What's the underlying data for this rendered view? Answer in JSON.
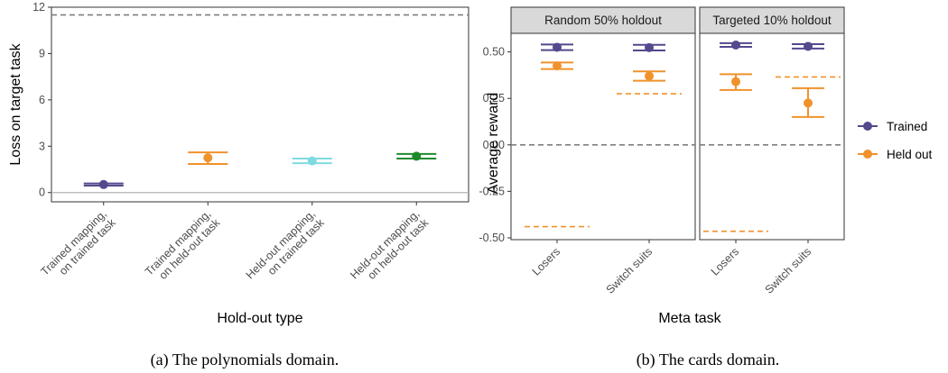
{
  "chart_data": [
    {
      "type": "scatter",
      "title": "",
      "xlabel": "Hold-out type",
      "ylabel": "Loss on target task",
      "ylim": [
        -0.6,
        12
      ],
      "yticks": [
        "0",
        "3",
        "6",
        "9",
        "12"
      ],
      "ytick_values": [
        0,
        3,
        6,
        9,
        12
      ],
      "reference_lines": [
        {
          "y": 0,
          "style": "solid",
          "color": "#b3b3b3"
        },
        {
          "y": 11.5,
          "style": "dashed",
          "color": "#7f7f7f"
        }
      ],
      "categories": [
        {
          "line1": "Trained mapping,",
          "line2": "on trained task"
        },
        {
          "line1": "Trained mapping,",
          "line2": "on held-out task"
        },
        {
          "line1": "Held-out mapping,",
          "line2": "on trained task"
        },
        {
          "line1": "Held-out mapping,",
          "line2": "on held-out task"
        }
      ],
      "points": [
        {
          "y": 0.52,
          "lo": 0.45,
          "hi": 0.59,
          "color": "#53498d"
        },
        {
          "y": 2.25,
          "lo": 1.85,
          "hi": 2.6,
          "color": "#f0922b"
        },
        {
          "y": 2.05,
          "lo": 1.9,
          "hi": 2.2,
          "color": "#7fdbe0"
        },
        {
          "y": 2.35,
          "lo": 2.2,
          "hi": 2.5,
          "color": "#1f8a2c"
        }
      ],
      "caption": "(a) The polynomials domain."
    },
    {
      "type": "scatter",
      "title": "",
      "xlabel": "Meta task",
      "ylabel": "Average reward",
      "ylim": [
        -0.51,
        0.6
      ],
      "yticks": [
        "0.50",
        "0.25",
        "0.00",
        "-0.25",
        "-0.50"
      ],
      "ytick_values": [
        0.5,
        0.25,
        0.0,
        -0.25,
        -0.5
      ],
      "categories": [
        "Losers",
        "Switch suits"
      ],
      "legend_position": "right",
      "legend": [
        {
          "name": "Trained",
          "color": "#53498d"
        },
        {
          "name": "Held out",
          "color": "#f0922b"
        }
      ],
      "panels": [
        {
          "label": "Random 50% holdout",
          "series": [
            {
              "name": "Trained",
              "color": "#53498d",
              "points": [
                {
                  "y": 0.525,
                  "lo": 0.51,
                  "hi": 0.54
                },
                {
                  "y": 0.523,
                  "lo": 0.508,
                  "hi": 0.538
                }
              ]
            },
            {
              "name": "Held out",
              "color": "#f0922b",
              "points": [
                {
                  "y": 0.425,
                  "lo": 0.408,
                  "hi": 0.443
                },
                {
                  "y": 0.37,
                  "lo": 0.345,
                  "hi": 0.395
                }
              ]
            }
          ],
          "baselines": [
            {
              "category": 0,
              "y": -0.44,
              "color": "#f0922b"
            },
            {
              "category": 1,
              "y": 0.275,
              "color": "#f0922b"
            }
          ]
        },
        {
          "label": "Targeted 10% holdout",
          "series": [
            {
              "name": "Trained",
              "color": "#53498d",
              "points": [
                {
                  "y": 0.537,
                  "lo": 0.527,
                  "hi": 0.547
                },
                {
                  "y": 0.53,
                  "lo": 0.518,
                  "hi": 0.542
                }
              ]
            },
            {
              "name": "Held out",
              "color": "#f0922b",
              "points": [
                {
                  "y": 0.34,
                  "lo": 0.295,
                  "hi": 0.38
                },
                {
                  "y": 0.225,
                  "lo": 0.15,
                  "hi": 0.305
                }
              ]
            }
          ],
          "baselines": [
            {
              "category": 0,
              "y": -0.465,
              "color": "#f0922b"
            },
            {
              "category": 1,
              "y": 0.365,
              "color": "#f0922b"
            }
          ]
        }
      ],
      "zero_line": {
        "y": 0,
        "style": "dashed",
        "color": "#7f7f7f"
      },
      "caption": "(b) The cards domain."
    }
  ]
}
